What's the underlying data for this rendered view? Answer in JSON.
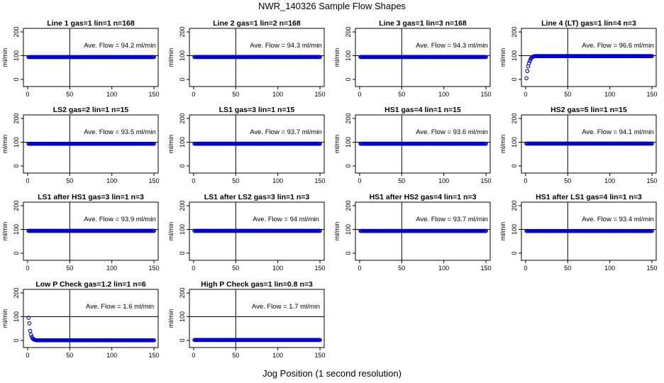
{
  "figure": {
    "title": "NWR_140326  Sample Flow Shapes",
    "x_caption": "Jog Position (1 second resolution)"
  },
  "colors": {
    "points": "#0000cc",
    "axes": "#000000"
  },
  "panel_defaults": {
    "ylabel": "ml/min",
    "x_ticks": [
      0,
      50,
      100,
      150
    ],
    "y_ticks": [
      0,
      100,
      200
    ],
    "xlim": [
      -5,
      155
    ],
    "ylim": [
      -30,
      215
    ],
    "vline_x": 50,
    "hline_y": 100,
    "annotation_prefix": "Ave. Flow = ",
    "annotation_unit": "  ml/min"
  },
  "chart_data": [
    {
      "type": "scatter",
      "title": "Line 1 gas=1 lin=1 n=168",
      "ave_flow": "94.2",
      "shape": "flat",
      "level": 94.2
    },
    {
      "type": "scatter",
      "title": "Line 2 gas=1 lin=2 n=168",
      "ave_flow": "94.3",
      "shape": "flat",
      "level": 94.3
    },
    {
      "type": "scatter",
      "title": "Line 3 gas=1 lin=3 n=168",
      "ave_flow": "94.3",
      "shape": "flat",
      "level": 94.3
    },
    {
      "type": "scatter",
      "title": "Line 4 (LT) gas=1 lin=4 n=3",
      "ave_flow": "96.6",
      "shape": "rise",
      "level": 98,
      "start_points": [
        [
          1,
          5
        ],
        [
          2,
          35
        ],
        [
          3,
          55
        ],
        [
          4,
          68
        ],
        [
          5,
          78
        ],
        [
          6,
          86
        ],
        [
          7,
          91
        ],
        [
          8,
          94
        ],
        [
          9,
          96
        ],
        [
          10,
          97
        ]
      ]
    },
    {
      "type": "scatter",
      "title": "LS2 gas=2 lin=1 n=15",
      "ave_flow": "93.5",
      "shape": "flat",
      "level": 93.5
    },
    {
      "type": "scatter",
      "title": "LS1 gas=3 lin=1 n=15",
      "ave_flow": "93.7",
      "shape": "flat",
      "level": 93.7
    },
    {
      "type": "scatter",
      "title": "HS1 gas=4 lin=1 n=15",
      "ave_flow": "93.6",
      "shape": "flat",
      "level": 93.6
    },
    {
      "type": "scatter",
      "title": "HS2 gas=5 lin=1 n=15",
      "ave_flow": "94.1",
      "shape": "flat",
      "level": 94.1
    },
    {
      "type": "scatter",
      "title": "LS1 after HS1 gas=3 lin=1 n=3",
      "ave_flow": "93.9",
      "shape": "flat",
      "level": 93.9
    },
    {
      "type": "scatter",
      "title": "LS1 after LS2 gas=3 lin=1 n=3",
      "ave_flow": "94",
      "shape": "flat",
      "level": 94
    },
    {
      "type": "scatter",
      "title": "HS1 after HS2 gas=4 lin=1 n=3",
      "ave_flow": "93.7",
      "shape": "flat",
      "level": 93.7
    },
    {
      "type": "scatter",
      "title": "HS1 after LS1 gas=4 lin=1 n=3",
      "ave_flow": "93.4",
      "shape": "flat",
      "level": 93.4
    },
    {
      "type": "scatter",
      "title": "Low P Check gas=1.2 lin=1 n=6",
      "ave_flow": "1.6",
      "shape": "decay",
      "level": 0.5,
      "start_points": [
        [
          1,
          95
        ],
        [
          2,
          72
        ],
        [
          3,
          40
        ],
        [
          4,
          24
        ],
        [
          5,
          14
        ],
        [
          6,
          8
        ],
        [
          7,
          5
        ],
        [
          8,
          3
        ],
        [
          9,
          2
        ],
        [
          10,
          1
        ]
      ]
    },
    {
      "type": "scatter",
      "title": "High P Check gas=1 lin=0.8 n=3",
      "ave_flow": "1.7",
      "shape": "flat",
      "level": 1.7
    }
  ]
}
